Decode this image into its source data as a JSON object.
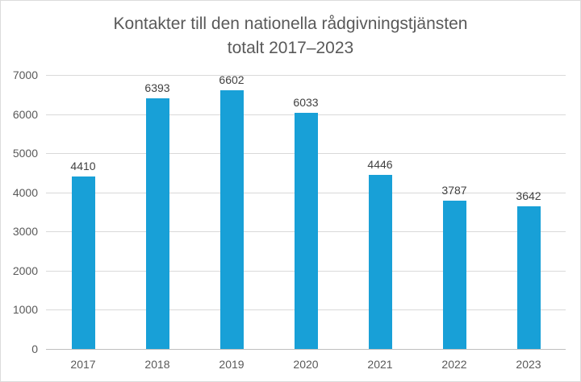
{
  "chart_data": {
    "type": "bar",
    "title": "Kontakter till den nationella rådgivningstjänsten totalt 2017–2023",
    "title_line1": "Kontakter till den nationella rådgivningstjänsten",
    "title_line2": "totalt 2017–2023",
    "categories": [
      "2017",
      "2018",
      "2019",
      "2020",
      "2021",
      "2022",
      "2023"
    ],
    "values": [
      4410,
      6393,
      6602,
      6033,
      4446,
      3787,
      3642
    ],
    "data_labels": [
      "4410",
      "6393",
      "6602",
      "6033",
      "4446",
      "3787",
      "3642"
    ],
    "xlabel": "",
    "ylabel": "",
    "ylim": [
      0,
      7000
    ],
    "yticks": [
      0,
      1000,
      2000,
      3000,
      4000,
      5000,
      6000,
      7000
    ],
    "grid": true,
    "legend": "none",
    "colors": {
      "bar": "#18A0D7",
      "gridline": "#d9d9d9",
      "axis_line": "#bfbfbf",
      "title_text": "#595959",
      "axis_text": "#595959",
      "data_label_text": "#404040",
      "frame_border": "#dcdcdc",
      "background": "#ffffff"
    }
  }
}
